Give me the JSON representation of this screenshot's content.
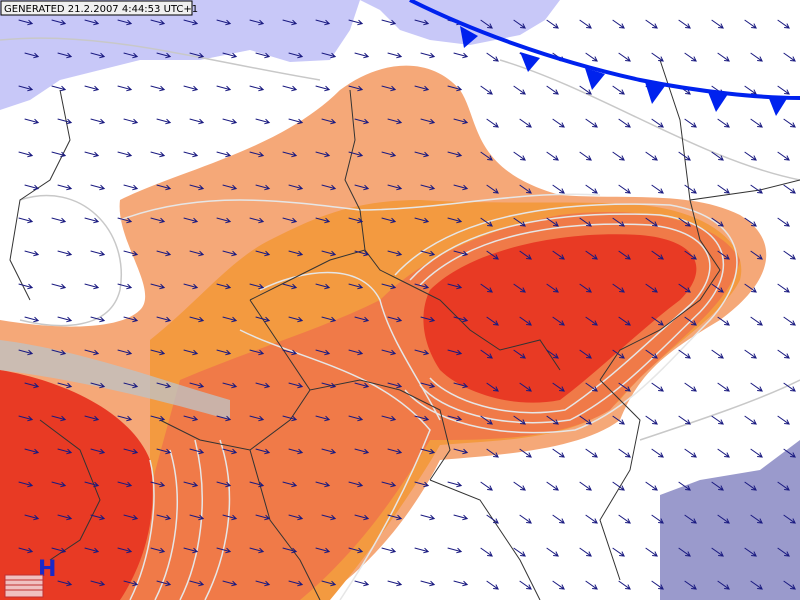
{
  "generated": "GENERATED 21.2.2007 4:44:53 UTC+1",
  "pressure_label": "H"
}
